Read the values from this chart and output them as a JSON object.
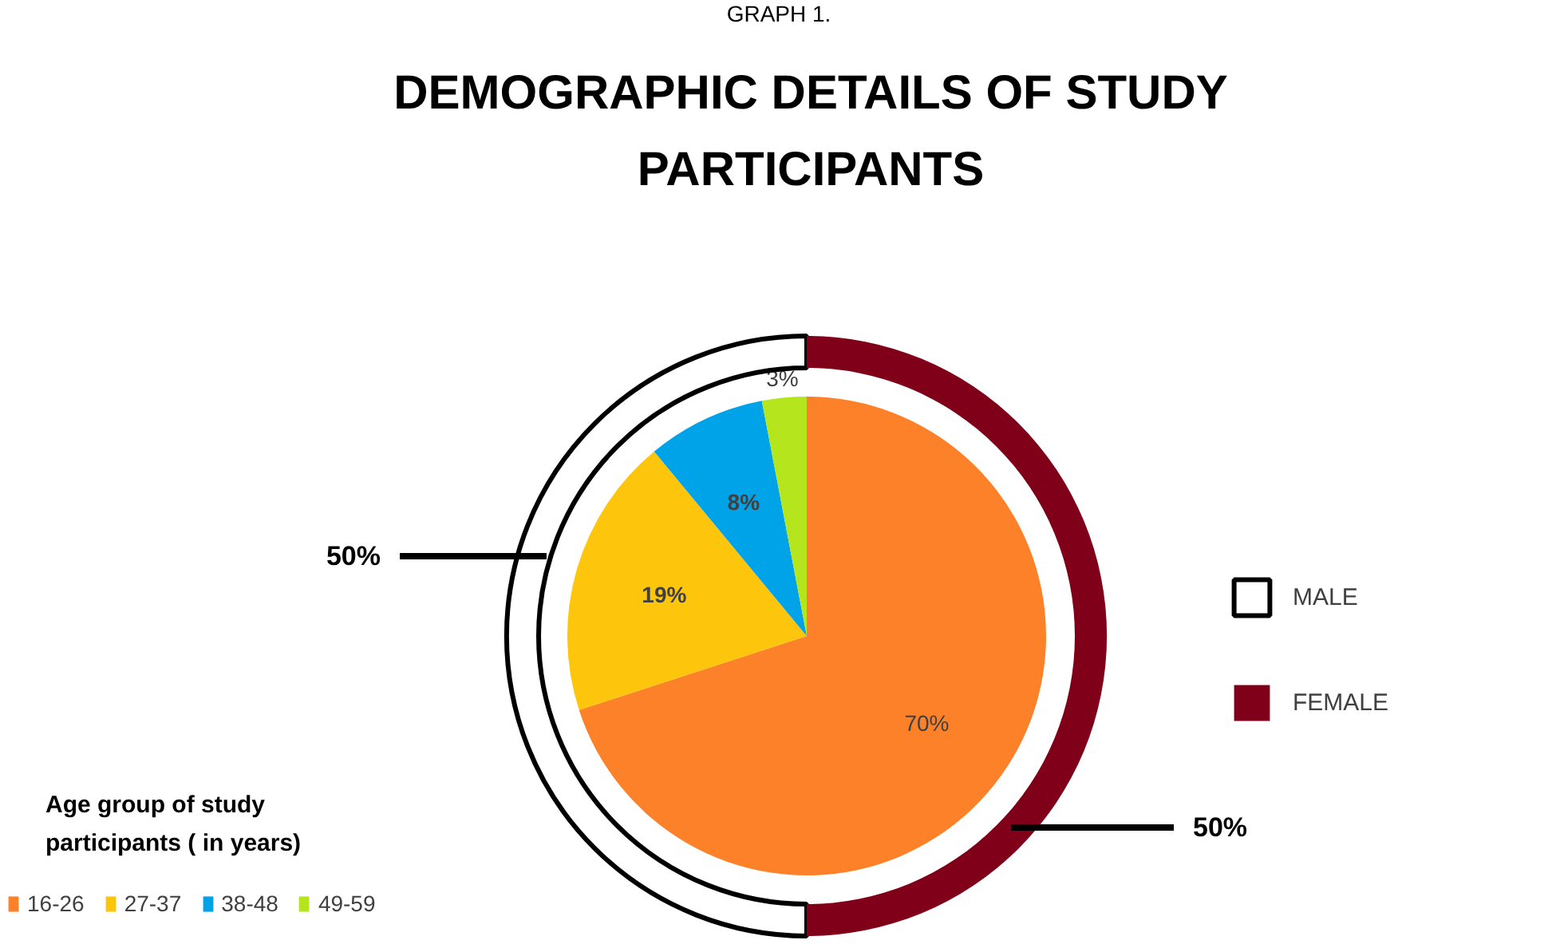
{
  "chart_data": {
    "type": "donut",
    "title": "DEMOGRAPHIC DETAILS OF STUDY PARTICIPANTS",
    "annotations": [
      "GRAPH 1."
    ],
    "legend_title": "Age group of study participants ( in years)",
    "legend": "bottom left",
    "categories": [
      "16-26",
      "27-37",
      "38-48",
      "49-59",
      "MALE",
      "FEMALE"
    ],
    "colors": [
      "#fd8128",
      "#fdc60c",
      "#00a2e8",
      "#b5e61d",
      "#ffffff",
      "#7f0018"
    ],
    "series": [
      {
        "type": "pie",
        "values": [
          70,
          19,
          8,
          3,
          null,
          null
        ],
        "value_labels": [
          "70%",
          "19%",
          "8%",
          "3%",
          null,
          null
        ]
      },
      {
        "values": [
          null,
          null,
          null,
          null,
          50,
          50
        ],
        "value_labels": [
          null,
          null,
          null,
          null,
          "50%",
          "50%"
        ]
      }
    ]
  }
}
